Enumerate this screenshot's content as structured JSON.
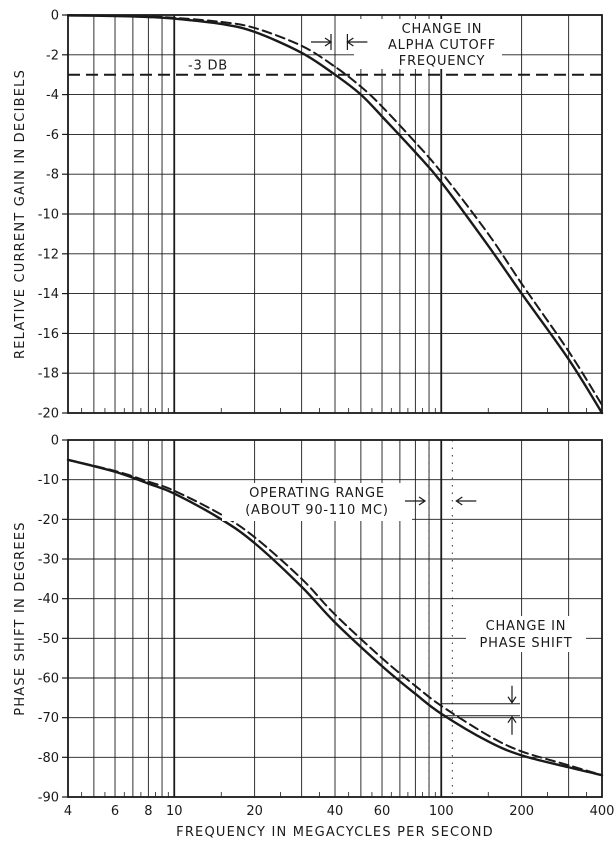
{
  "xlabel": "FREQUENCY IN MEGACYCLES PER SECOND",
  "x_ticks": [
    {
      "value": 4,
      "label": "4"
    },
    {
      "value": 6,
      "label": "6"
    },
    {
      "value": 8,
      "label": "8"
    },
    {
      "value": 10,
      "label": "10"
    },
    {
      "value": 20,
      "label": "20"
    },
    {
      "value": 40,
      "label": "40"
    },
    {
      "value": 60,
      "label": "60"
    },
    {
      "value": 100,
      "label": "100"
    },
    {
      "value": 200,
      "label": "200"
    },
    {
      "value": 400,
      "label": "400"
    }
  ],
  "chart_data": [
    {
      "type": "line",
      "xscale": "log",
      "xlim": [
        4,
        400
      ],
      "ylim": [
        -20,
        0
      ],
      "ylabel": "RELATIVE CURRENT GAIN IN DECIBELS",
      "y_ticks": [
        "0",
        "-2",
        "-4",
        "-6",
        "-8",
        "-10",
        "-12",
        "-14",
        "-16",
        "-18",
        "-20"
      ],
      "grid": true,
      "series": [
        {
          "style": "solid",
          "x": [
            4,
            6,
            8,
            10,
            15,
            20,
            30,
            40,
            50,
            60,
            80,
            100,
            150,
            200,
            300,
            400
          ],
          "y": [
            -0.02,
            -0.05,
            -0.1,
            -0.18,
            -0.45,
            -0.85,
            -1.9,
            -3.0,
            -4.0,
            -5.1,
            -6.9,
            -8.4,
            -11.6,
            -14.0,
            -17.3,
            -20.0
          ]
        },
        {
          "style": "dashed",
          "x": [
            4,
            6,
            8,
            10,
            15,
            20,
            30,
            40,
            50,
            60,
            80,
            100,
            150,
            200,
            300,
            400
          ],
          "y": [
            -0.01,
            -0.03,
            -0.07,
            -0.14,
            -0.35,
            -0.65,
            -1.55,
            -2.6,
            -3.6,
            -4.6,
            -6.4,
            -7.9,
            -11.0,
            -13.5,
            -16.9,
            -19.6
          ]
        }
      ],
      "reference_line": {
        "y": -3,
        "label": "-3 DB",
        "style": "dashed"
      },
      "annotation": {
        "lines": [
          "CHANGE IN",
          "ALPHA CUTOFF",
          "FREQUENCY"
        ]
      }
    },
    {
      "type": "line",
      "xscale": "log",
      "xlim": [
        4,
        400
      ],
      "ylim": [
        -90,
        0
      ],
      "ylabel": "PHASE SHIFT IN DEGREES",
      "y_ticks": [
        "0",
        "-10",
        "-20",
        "-30",
        "-40",
        "-50",
        "-60",
        "-70",
        "-80",
        "-90"
      ],
      "grid": true,
      "series": [
        {
          "style": "solid",
          "x": [
            4,
            6,
            8,
            10,
            15,
            20,
            30,
            40,
            60,
            80,
            100,
            150,
            200,
            300,
            400
          ],
          "y": [
            -5,
            -8,
            -11,
            -13.5,
            -20,
            -26,
            -37,
            -46,
            -57,
            -64,
            -69,
            -76,
            -79.5,
            -82.5,
            -84.5
          ]
        },
        {
          "style": "dashed",
          "x": [
            4,
            6,
            8,
            10,
            15,
            20,
            30,
            40,
            60,
            80,
            100,
            150,
            200,
            300,
            400
          ],
          "y": [
            -5,
            -7.8,
            -10.5,
            -12.8,
            -18.8,
            -24.5,
            -35,
            -44,
            -55,
            -62,
            -67,
            -74.5,
            -78.5,
            -82,
            -84.5
          ]
        }
      ],
      "annotation_range": {
        "lines": [
          "OPERATING RANGE",
          "(ABOUT 90-110 MC)"
        ],
        "from": 90,
        "to": 110
      },
      "annotation_shift": {
        "lines": [
          "CHANGE IN",
          "PHASE SHIFT"
        ]
      }
    }
  ]
}
